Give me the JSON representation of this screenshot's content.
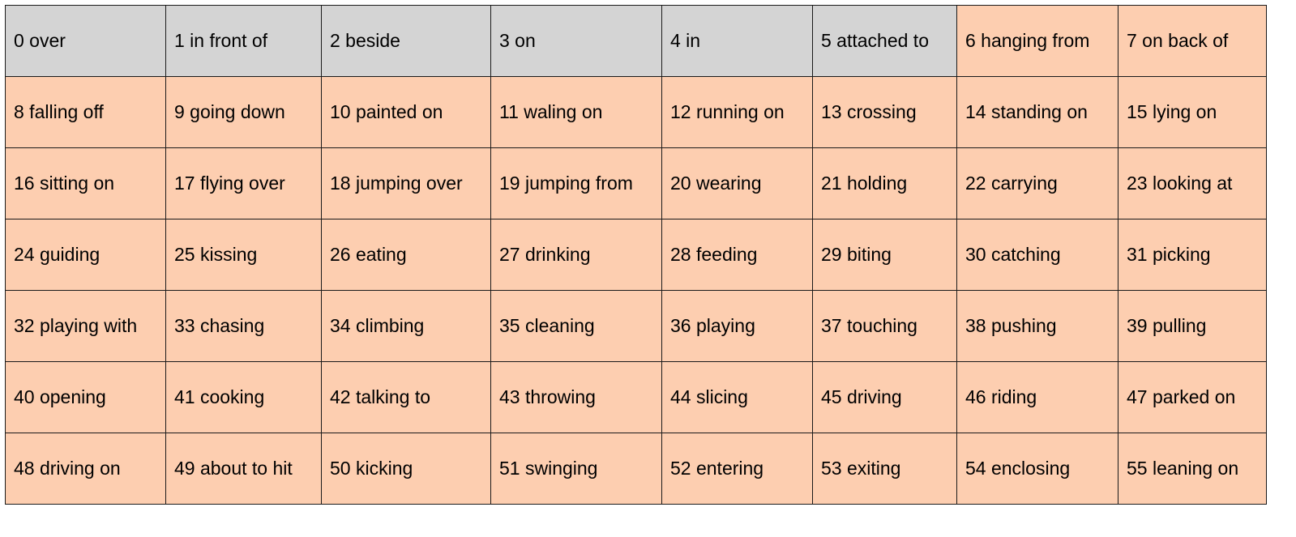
{
  "colors": {
    "gray": "#d4d4d4",
    "orange": "#fdceb0",
    "border": "#1a1a1a"
  },
  "rows": [
    [
      {
        "label": "0 over",
        "color": "gray"
      },
      {
        "label": "1 in front of",
        "color": "gray"
      },
      {
        "label": "2 beside",
        "color": "gray"
      },
      {
        "label": "3 on",
        "color": "gray"
      },
      {
        "label": "4 in",
        "color": "gray"
      },
      {
        "label": "5 attached to",
        "color": "gray"
      },
      {
        "label": "6 hanging from",
        "color": "orange"
      },
      {
        "label": "7 on back of",
        "color": "orange"
      }
    ],
    [
      {
        "label": "8 falling off",
        "color": "orange"
      },
      {
        "label": "9 going down",
        "color": "orange"
      },
      {
        "label": "10 painted on",
        "color": "orange"
      },
      {
        "label": "11 waling on",
        "color": "orange"
      },
      {
        "label": "12 running on",
        "color": "orange"
      },
      {
        "label": "13 crossing",
        "color": "orange"
      },
      {
        "label": "14 standing on",
        "color": "orange"
      },
      {
        "label": "15 lying on",
        "color": "orange"
      }
    ],
    [
      {
        "label": "16 sitting on",
        "color": "orange"
      },
      {
        "label": "17 flying over",
        "color": "orange"
      },
      {
        "label": "18 jumping over",
        "color": "orange"
      },
      {
        "label": "19 jumping from",
        "color": "orange"
      },
      {
        "label": "20 wearing",
        "color": "orange"
      },
      {
        "label": "21 holding",
        "color": "orange"
      },
      {
        "label": "22 carrying",
        "color": "orange"
      },
      {
        "label": "23 looking at",
        "color": "orange"
      }
    ],
    [
      {
        "label": "24 guiding",
        "color": "orange"
      },
      {
        "label": "25 kissing",
        "color": "orange"
      },
      {
        "label": "26 eating",
        "color": "orange"
      },
      {
        "label": "27 drinking",
        "color": "orange"
      },
      {
        "label": "28 feeding",
        "color": "orange"
      },
      {
        "label": "29 biting",
        "color": "orange"
      },
      {
        "label": "30 catching",
        "color": "orange"
      },
      {
        "label": "31 picking",
        "color": "orange"
      }
    ],
    [
      {
        "label": "32 playing with",
        "color": "orange"
      },
      {
        "label": "33 chasing",
        "color": "orange"
      },
      {
        "label": "34 climbing",
        "color": "orange"
      },
      {
        "label": "35 cleaning",
        "color": "orange"
      },
      {
        "label": "36 playing",
        "color": "orange"
      },
      {
        "label": "37 touching",
        "color": "orange"
      },
      {
        "label": "38 pushing",
        "color": "orange"
      },
      {
        "label": "39 pulling",
        "color": "orange"
      }
    ],
    [
      {
        "label": "40 opening",
        "color": "orange"
      },
      {
        "label": "41 cooking",
        "color": "orange"
      },
      {
        "label": "42 talking to",
        "color": "orange"
      },
      {
        "label": "43 throwing",
        "color": "orange"
      },
      {
        "label": "44 slicing",
        "color": "orange"
      },
      {
        "label": "45 driving",
        "color": "orange"
      },
      {
        "label": "46 riding",
        "color": "orange"
      },
      {
        "label": "47 parked on",
        "color": "orange"
      }
    ],
    [
      {
        "label": "48 driving on",
        "color": "orange"
      },
      {
        "label": "49 about to hit",
        "color": "orange"
      },
      {
        "label": "50 kicking",
        "color": "orange"
      },
      {
        "label": "51 swinging",
        "color": "orange"
      },
      {
        "label": "52 entering",
        "color": "orange"
      },
      {
        "label": "53 exiting",
        "color": "orange"
      },
      {
        "label": "54 enclosing",
        "color": "orange"
      },
      {
        "label": "55 leaning on",
        "color": "orange"
      }
    ]
  ]
}
